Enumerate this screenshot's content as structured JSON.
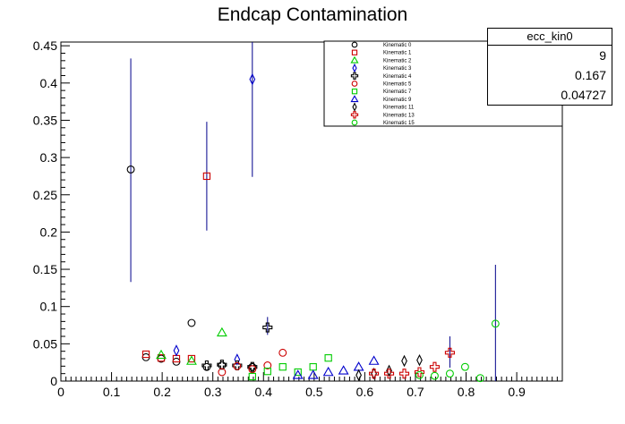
{
  "chart_data": {
    "type": "scatter",
    "title": "Endcap Contamination",
    "xlabel": "",
    "ylabel": "",
    "xlim": [
      0,
      0.99
    ],
    "ylim": [
      0,
      0.455
    ],
    "x_ticks": [
      0,
      0.1,
      0.2,
      0.3,
      0.4,
      0.5,
      0.6,
      0.7,
      0.8,
      0.9
    ],
    "x_tick_labels": [
      "0",
      "0.1",
      "0.2",
      "0.3",
      "0.4",
      "0.5",
      "0.6",
      "0.7",
      "0.8",
      "0.9"
    ],
    "y_ticks": [
      0,
      0.05,
      0.1,
      0.15,
      0.2,
      0.25,
      0.3,
      0.35,
      0.4,
      0.45
    ],
    "y_tick_labels": [
      "0",
      "0.05",
      "0.1",
      "0.15",
      "0.2",
      "0.25",
      "0.3",
      "0.35",
      "0.4",
      "0.45"
    ],
    "grid": false,
    "legend_position": "top-right",
    "series": [
      {
        "name": "Kinematic 0",
        "marker": "open-circle",
        "color": "#000000",
        "points": [
          {
            "x": 0.138,
            "y": 0.284,
            "lo": 0.133,
            "hi": 0.433
          },
          {
            "x": 0.168,
            "y": 0.032
          },
          {
            "x": 0.198,
            "y": 0.03
          },
          {
            "x": 0.228,
            "y": 0.026
          },
          {
            "x": 0.258,
            "y": 0.078
          },
          {
            "x": 0.288,
            "y": 0.019
          },
          {
            "x": 0.318,
            "y": 0.021
          },
          {
            "x": 0.378,
            "y": 0.019
          }
        ]
      },
      {
        "name": "Kinematic 1",
        "marker": "open-square",
        "color": "#cc0000",
        "points": [
          {
            "x": 0.168,
            "y": 0.036
          },
          {
            "x": 0.198,
            "y": 0.031
          },
          {
            "x": 0.228,
            "y": 0.03
          },
          {
            "x": 0.258,
            "y": 0.03
          },
          {
            "x": 0.288,
            "y": 0.275,
            "lo": 0.202,
            "hi": 0.348
          }
        ]
      },
      {
        "name": "Kinematic 2",
        "marker": "open-triangle-up",
        "color": "#00cc00",
        "points": [
          {
            "x": 0.198,
            "y": 0.035
          },
          {
            "x": 0.258,
            "y": 0.027
          },
          {
            "x": 0.318,
            "y": 0.065
          }
        ]
      },
      {
        "name": "Kinematic 3",
        "marker": "open-diamond",
        "color": "#0000cc",
        "points": [
          {
            "x": 0.228,
            "y": 0.041
          },
          {
            "x": 0.348,
            "y": 0.029
          },
          {
            "x": 0.378,
            "y": 0.405,
            "lo": 0.274,
            "hi": 0.455
          }
        ]
      },
      {
        "name": "Kinematic 4",
        "marker": "open-cross",
        "color": "#000000",
        "points": [
          {
            "x": 0.288,
            "y": 0.021
          },
          {
            "x": 0.318,
            "y": 0.022
          },
          {
            "x": 0.348,
            "y": 0.021
          },
          {
            "x": 0.378,
            "y": 0.019
          },
          {
            "x": 0.408,
            "y": 0.072,
            "lo": 0.062,
            "hi": 0.086
          }
        ]
      },
      {
        "name": "Kinematic 5",
        "marker": "open-circle",
        "color": "#cc0000",
        "points": [
          {
            "x": 0.318,
            "y": 0.012
          },
          {
            "x": 0.348,
            "y": 0.02
          },
          {
            "x": 0.378,
            "y": 0.016
          },
          {
            "x": 0.408,
            "y": 0.021
          },
          {
            "x": 0.438,
            "y": 0.038
          }
        ]
      },
      {
        "name": "Kinematic 7",
        "marker": "open-square",
        "color": "#00cc00",
        "points": [
          {
            "x": 0.378,
            "y": 0.006
          },
          {
            "x": 0.408,
            "y": 0.013
          },
          {
            "x": 0.438,
            "y": 0.019
          },
          {
            "x": 0.468,
            "y": 0.012
          },
          {
            "x": 0.498,
            "y": 0.019
          },
          {
            "x": 0.528,
            "y": 0.031
          }
        ]
      },
      {
        "name": "Kinematic 9",
        "marker": "open-triangle-up",
        "color": "#0000cc",
        "points": [
          {
            "x": 0.468,
            "y": 0.008
          },
          {
            "x": 0.498,
            "y": 0.008
          },
          {
            "x": 0.528,
            "y": 0.012
          },
          {
            "x": 0.558,
            "y": 0.014
          },
          {
            "x": 0.588,
            "y": 0.019
          },
          {
            "x": 0.618,
            "y": 0.027
          }
        ]
      },
      {
        "name": "Kinematic 11",
        "marker": "open-diamond",
        "color": "#000000",
        "points": [
          {
            "x": 0.588,
            "y": 0.008
          },
          {
            "x": 0.618,
            "y": 0.01
          },
          {
            "x": 0.648,
            "y": 0.014
          },
          {
            "x": 0.678,
            "y": 0.027
          },
          {
            "x": 0.708,
            "y": 0.028
          }
        ]
      },
      {
        "name": "Kinematic 13",
        "marker": "open-cross",
        "color": "#cc0000",
        "points": [
          {
            "x": 0.618,
            "y": 0.01
          },
          {
            "x": 0.648,
            "y": 0.01
          },
          {
            "x": 0.678,
            "y": 0.01
          },
          {
            "x": 0.708,
            "y": 0.012
          },
          {
            "x": 0.738,
            "y": 0.019
          },
          {
            "x": 0.768,
            "y": 0.038,
            "lo": 0.018,
            "hi": 0.06
          }
        ]
      },
      {
        "name": "Kinematic 15",
        "marker": "open-circle",
        "color": "#00cc00",
        "points": [
          {
            "x": 0.708,
            "y": 0.008
          },
          {
            "x": 0.738,
            "y": 0.007
          },
          {
            "x": 0.768,
            "y": 0.01
          },
          {
            "x": 0.798,
            "y": 0.019
          },
          {
            "x": 0.828,
            "y": 0.004
          },
          {
            "x": 0.858,
            "y": 0.077,
            "lo": 0.0,
            "hi": 0.156
          }
        ]
      }
    ]
  },
  "stats_box": {
    "name": "ecc_kin0",
    "values": [
      "9",
      "0.167",
      "0.04727"
    ]
  },
  "colors": {
    "error_bar": "#00008b",
    "axis": "#000000",
    "background": "#ffffff"
  }
}
